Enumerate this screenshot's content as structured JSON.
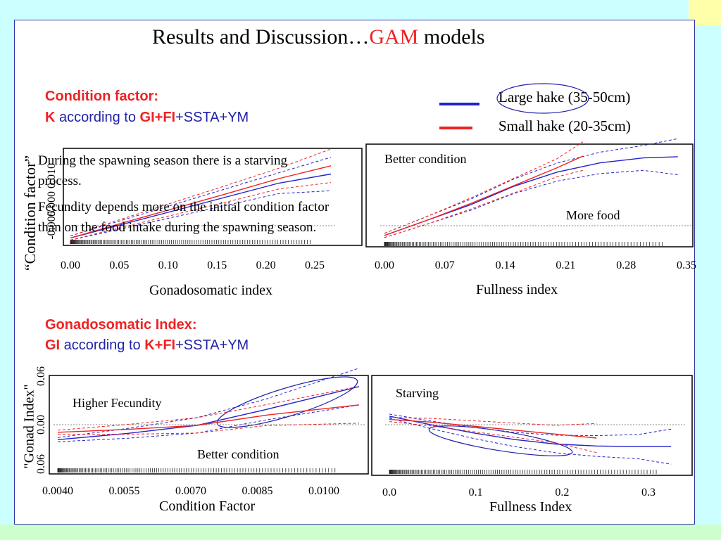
{
  "slide": {
    "title_prefix": "Results and Discussion…",
    "title_highlight": "GAM",
    "title_suffix": " models",
    "colors": {
      "red": "#ee2222",
      "blue": "#2222cc",
      "navy": "#2222aa"
    }
  },
  "section1": {
    "heading": "Condition factor:",
    "formula_k": "K",
    "formula_mid": " according to ",
    "formula_gifi": "GI+FI",
    "formula_rest": "+SSTA+YM"
  },
  "section2": {
    "heading": "Gonadosomatic Index:",
    "formula_gi": "GI",
    "formula_mid": " according to ",
    "formula_kfi": "K+FI",
    "formula_rest": "+SSTA+YM"
  },
  "legend": {
    "items": [
      {
        "label": "Large hake (35-50cm)",
        "color": "#2222cc"
      },
      {
        "label": "Small hake (20-35cm)",
        "color": "#ee2222"
      }
    ]
  },
  "notes": {
    "paragraph1": "During the spawning season there is a starving process.",
    "paragraph2": "Fecundity depends more on the initial condition factor than on the food intake during the spawning season."
  },
  "chart_data": [
    {
      "type": "line",
      "xlabel": "Gonadosomatic index",
      "ylabel": "“Condition factor”",
      "x_ticks": [
        "0.00",
        "0.05",
        "0.10",
        "0.15",
        "0.20",
        "0.25"
      ],
      "y_ticks": [
        "-0.005",
        "0.000",
        "0.010"
      ],
      "xlim": [
        0,
        0.25
      ],
      "ylim": [
        -0.006,
        0.014
      ],
      "series": [
        {
          "color": "#2222cc",
          "x": [
            0.0,
            0.05,
            0.1,
            0.15,
            0.2,
            0.25
          ],
          "y": [
            -0.005,
            -0.002,
            0.001,
            0.004,
            0.007,
            0.009
          ]
        },
        {
          "color": "#ee2222",
          "x": [
            0.0,
            0.05,
            0.1,
            0.15,
            0.2,
            0.25
          ],
          "y": [
            -0.005,
            -0.0017,
            0.0015,
            0.0047,
            0.008,
            0.0108
          ]
        }
      ]
    },
    {
      "type": "line",
      "xlabel": "Fullness index",
      "ylabel": "",
      "annotations": [
        "Better condition",
        "More food"
      ],
      "x_ticks": [
        "0.00",
        "0.07",
        "0.14",
        "0.21",
        "0.28",
        "0.35"
      ],
      "xlim": [
        0,
        0.35
      ],
      "ylim": [
        -0.004,
        0.012
      ],
      "series": [
        {
          "color": "#2222cc",
          "x": [
            0.0,
            0.05,
            0.1,
            0.15,
            0.2,
            0.25,
            0.3,
            0.34
          ],
          "y": [
            -0.0025,
            0.0,
            0.0025,
            0.0055,
            0.0078,
            0.0093,
            0.0101,
            0.0103
          ]
        },
        {
          "color": "#ee2222",
          "x": [
            0.0,
            0.05,
            0.1,
            0.15,
            0.2,
            0.23
          ],
          "y": [
            -0.0025,
            0.0,
            0.0027,
            0.0056,
            0.0085,
            0.0104
          ]
        }
      ]
    },
    {
      "type": "line",
      "xlabel": "Condition Factor",
      "ylabel": "\"Gonad Index\"",
      "annotations": [
        "Higher Fecundity",
        "Better condition"
      ],
      "x_ticks": [
        "0.0040",
        "0.0055",
        "0.0070",
        "0.0085",
        "0.0100"
      ],
      "y_ticks": [
        "0.06",
        "0.00",
        "0.06"
      ],
      "xlim": [
        0.004,
        0.0105
      ],
      "ylim": [
        -0.08,
        0.08
      ],
      "series": [
        {
          "color": "#2222cc",
          "x": [
            0.004,
            0.0055,
            0.007,
            0.0085,
            0.0105
          ],
          "y": [
            -0.025,
            -0.014,
            0.0,
            0.028,
            0.068
          ]
        },
        {
          "color": "#ee2222",
          "x": [
            0.004,
            0.0055,
            0.007,
            0.0085,
            0.0105
          ],
          "y": [
            -0.012,
            -0.007,
            0.0,
            0.018,
            0.036
          ]
        }
      ]
    },
    {
      "type": "line",
      "xlabel": "Fullness Index",
      "ylabel": "",
      "annotations": [
        "Starving"
      ],
      "x_ticks": [
        "0.0",
        "0.1",
        "0.2",
        "0.3"
      ],
      "xlim": [
        0,
        0.35
      ],
      "ylim": [
        -0.08,
        0.06
      ],
      "series": [
        {
          "color": "#2222cc",
          "x": [
            0.0,
            0.05,
            0.1,
            0.15,
            0.2,
            0.25,
            0.3,
            0.34
          ],
          "y": [
            0.005,
            -0.008,
            -0.02,
            -0.03,
            -0.037,
            -0.04,
            -0.041,
            -0.041
          ]
        },
        {
          "color": "#ee2222",
          "x": [
            0.0,
            0.05,
            0.1,
            0.15,
            0.2,
            0.25
          ],
          "y": [
            0.0,
            -0.004,
            -0.01,
            -0.016,
            -0.022,
            -0.028
          ]
        }
      ]
    }
  ]
}
